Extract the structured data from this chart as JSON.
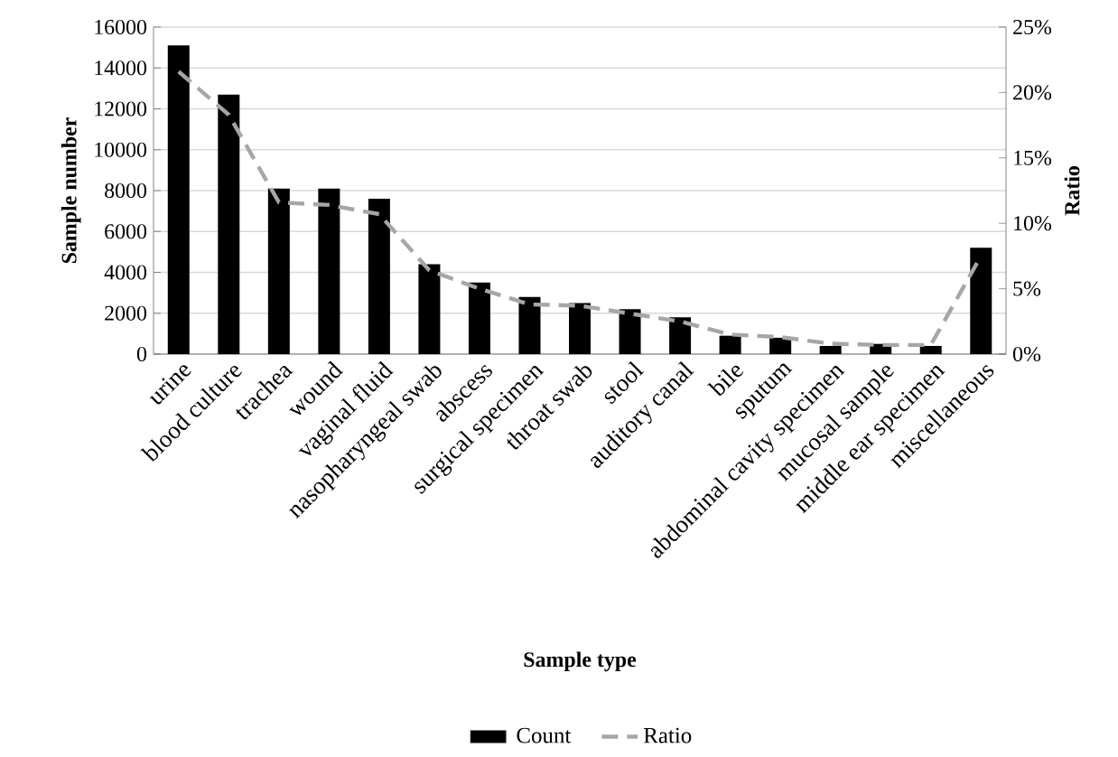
{
  "chart_data": {
    "type": "bar",
    "xlabel": "Sample type",
    "ylabel": "Sample number",
    "y2label": "Ratio",
    "categories": [
      "urine",
      "blood culture",
      "trachea",
      "wound",
      "vaginal fluid",
      "nasopharyngeal swab",
      "abscess",
      "surgical specimen",
      "throat swab",
      "stool",
      "auditory canal",
      "bile",
      "sputum",
      "abdominal cavity specimen",
      "mucosal sample",
      "middle ear specimen",
      "miscellaneous"
    ],
    "series": [
      {
        "name": "Count",
        "color": "#000000",
        "values": [
          15100,
          12700,
          8100,
          8100,
          7600,
          4400,
          3500,
          2800,
          2500,
          2200,
          1800,
          900,
          800,
          400,
          500,
          400,
          5200
        ]
      },
      {
        "name": "Ratio",
        "type": "line",
        "axis": "y2",
        "color": "#a6a6a6",
        "line_style": "dashed",
        "values": [
          21.6,
          18.3,
          11.6,
          11.4,
          10.7,
          6.4,
          5.0,
          3.8,
          3.7,
          3.1,
          2.5,
          1.5,
          1.3,
          0.8,
          0.7,
          0.7,
          7.5
        ]
      }
    ],
    "ylim": [
      0,
      16000
    ],
    "yticks": [
      0,
      2000,
      4000,
      6000,
      8000,
      10000,
      12000,
      14000,
      16000
    ],
    "y2lim": [
      0,
      25
    ],
    "y2ticks": [
      {
        "value": 0,
        "label": "0%"
      },
      {
        "value": 5,
        "label": "5%"
      },
      {
        "value": 10,
        "label": "10%"
      },
      {
        "value": 15,
        "label": "15%"
      },
      {
        "value": 20,
        "label": "20%"
      },
      {
        "value": 25,
        "label": "25%"
      }
    ],
    "grid": "y",
    "legend": "bottom"
  }
}
